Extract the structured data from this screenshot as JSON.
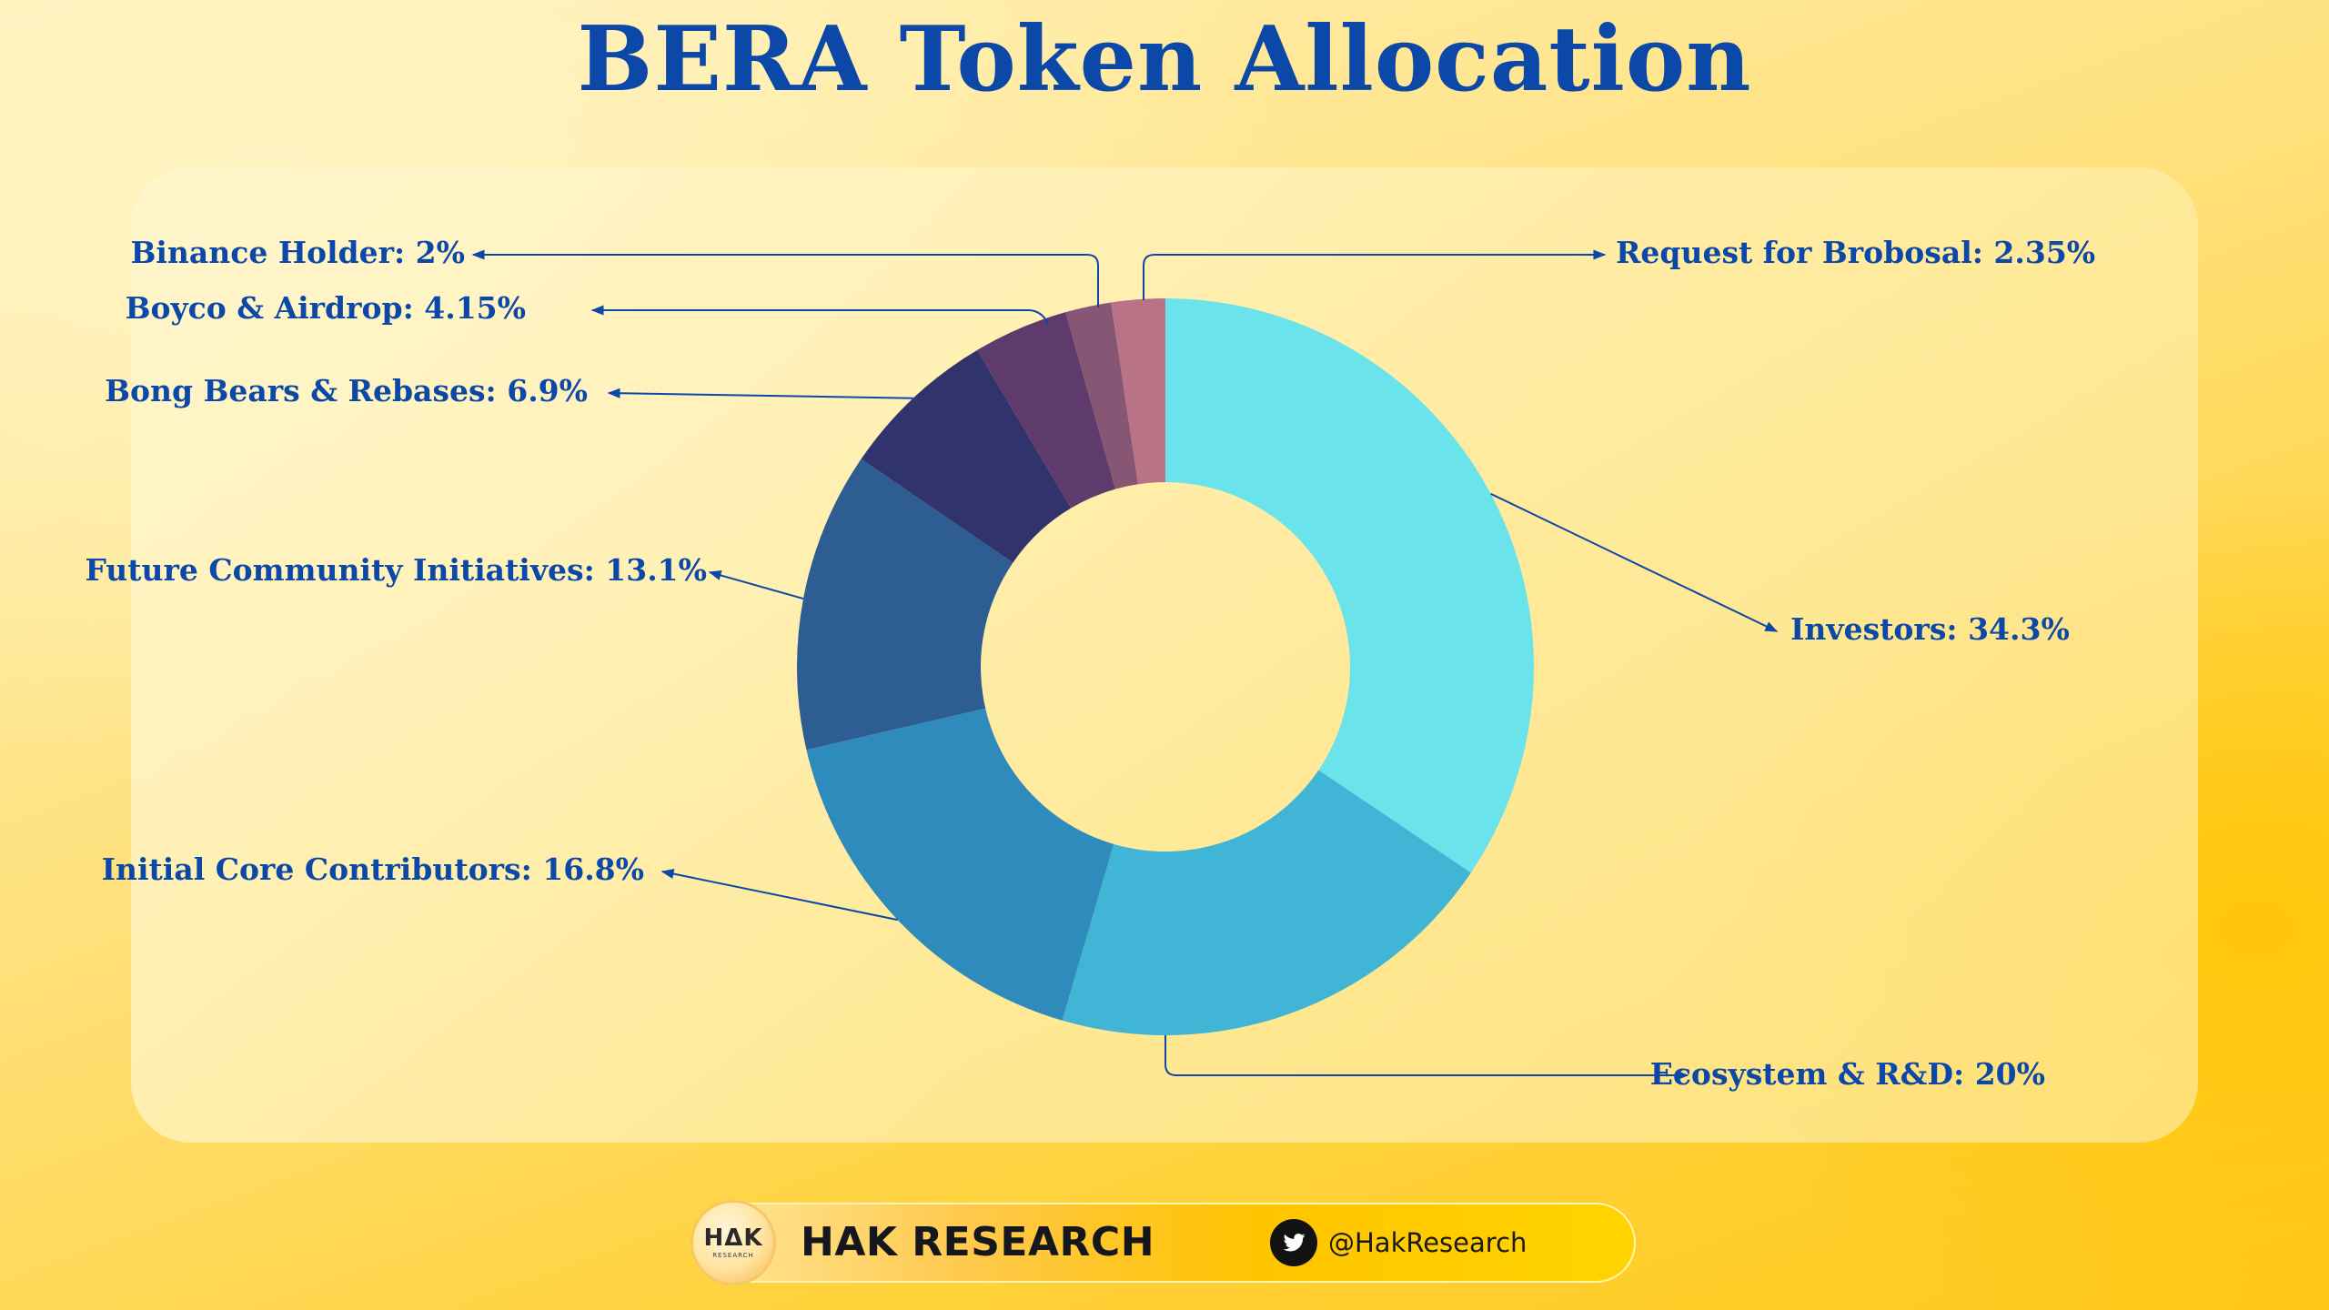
{
  "title": "BERA Token Allocation",
  "chart_data": {
    "type": "pie",
    "title": "BERA Token Allocation",
    "slices": [
      {
        "label": "Investors: 34.3%",
        "name": "Investors",
        "value": 34.3,
        "color": "#6ae4ea"
      },
      {
        "label": "Ecosystem & R&D: 20%",
        "name": "Ecosystem & R&D",
        "value": 20,
        "color": "#41b5d6"
      },
      {
        "label": "Initial Core Contributors: 16.8%",
        "name": "Initial Core Contributors",
        "value": 16.8,
        "color": "#2e8bbb"
      },
      {
        "label": "Future Community Initiatives: 13.1%",
        "name": "Future Community Initiatives",
        "value": 13.1,
        "color": "#2e5d94"
      },
      {
        "label": "Bong Bears & Rebases: 6.9%",
        "name": "Bong Bears & Rebases",
        "value": 6.9,
        "color": "#31336c"
      },
      {
        "label": "Boyco & Airdrop: 4.15%",
        "name": "Boyco & Airdrop",
        "value": 4.15,
        "color": "#5f3a6c"
      },
      {
        "label": "Binance Holder: 2%",
        "name": "Binance Holder",
        "value": 2,
        "color": "#875674"
      },
      {
        "label": "Request for Brobosal: 2.35%",
        "name": "Request for Brobosal",
        "value": 2.35,
        "color": "#b87486"
      }
    ],
    "label_color": "#0c48a8"
  },
  "footer": {
    "logo_text": "HΔK",
    "logo_subtext": "RESEARCH",
    "brand": "HAK RESEARCH",
    "twitter_handle": "@HakResearch"
  }
}
